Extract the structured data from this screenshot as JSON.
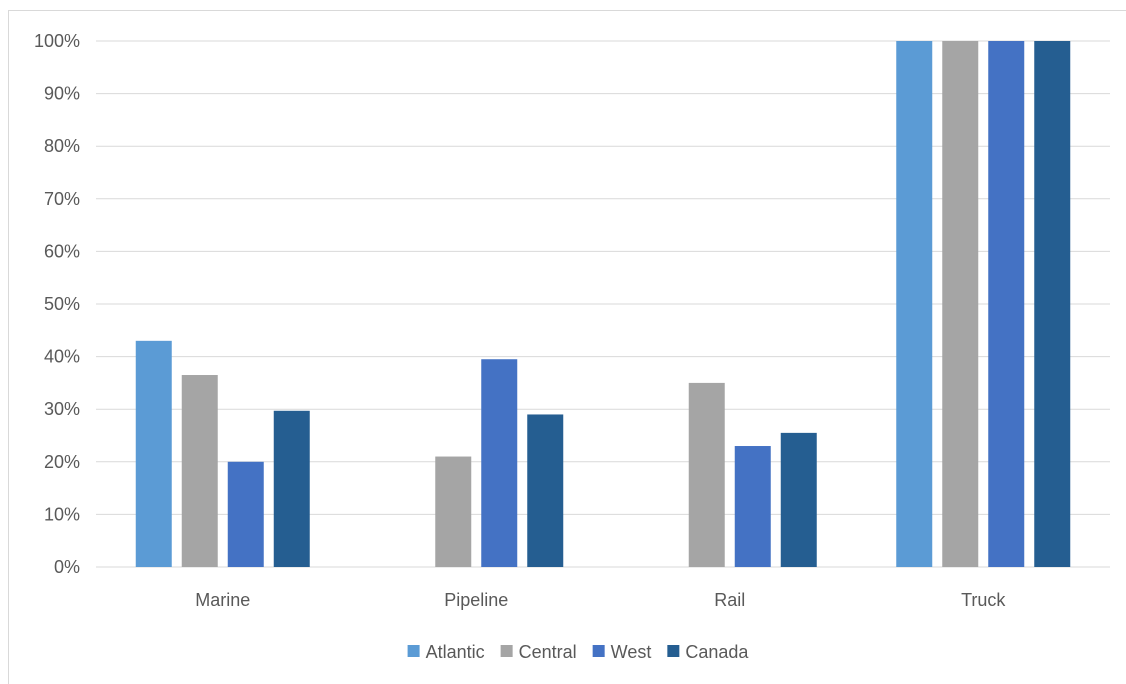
{
  "chart_data": {
    "type": "bar",
    "title": "",
    "xlabel": "",
    "ylabel": "",
    "categories": [
      "Marine",
      "Pipeline",
      "Rail",
      "Truck"
    ],
    "y_ticks": [
      "0%",
      "10%",
      "20%",
      "30%",
      "40%",
      "50%",
      "60%",
      "70%",
      "80%",
      "90%",
      "100%"
    ],
    "ylim": [
      0,
      100
    ],
    "grid": true,
    "legend_position": "bottom",
    "series": [
      {
        "name": "Atlantic",
        "color": "#5b9bd5",
        "values": [
          43,
          0,
          0,
          100
        ]
      },
      {
        "name": "Central",
        "color": "#a5a5a5",
        "values": [
          36.5,
          21,
          35,
          100
        ]
      },
      {
        "name": "West",
        "color": "#4472c4",
        "values": [
          20,
          39.5,
          23,
          100
        ]
      },
      {
        "name": "Canada",
        "color": "#255e91",
        "values": [
          29.7,
          29,
          25.5,
          100
        ]
      }
    ]
  }
}
